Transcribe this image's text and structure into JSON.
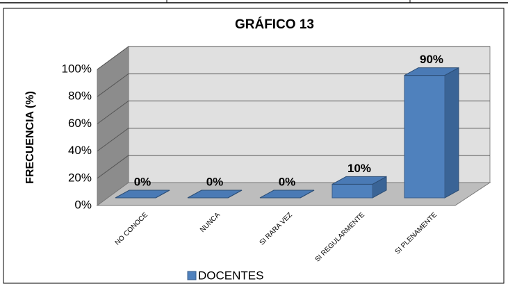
{
  "chart_data": {
    "type": "bar3d",
    "title": "GRÁFICO 13",
    "y_label": "FRECUENCIA (%)",
    "categories": [
      "NO CONOCE",
      "NUNCA",
      "SI RARA VEZ",
      "SI REGULARMENTE",
      "SI PLENAMENTE"
    ],
    "series": [
      {
        "name": "DOCENTES",
        "color": "#4f81bd",
        "values": [
          0,
          0,
          0,
          10,
          90
        ],
        "value_labels": [
          "0%",
          "0%",
          "0%",
          "10%",
          "90%"
        ]
      }
    ],
    "ylim": [
      0,
      100
    ],
    "yticks": [
      {
        "value": 0,
        "label": "0%"
      },
      {
        "value": 20,
        "label": "20%"
      },
      {
        "value": 40,
        "label": "40%"
      },
      {
        "value": 60,
        "label": "60%"
      },
      {
        "value": 80,
        "label": "80%"
      },
      {
        "value": 100,
        "label": "100%"
      }
    ],
    "grid": true,
    "legend": "bottom"
  }
}
